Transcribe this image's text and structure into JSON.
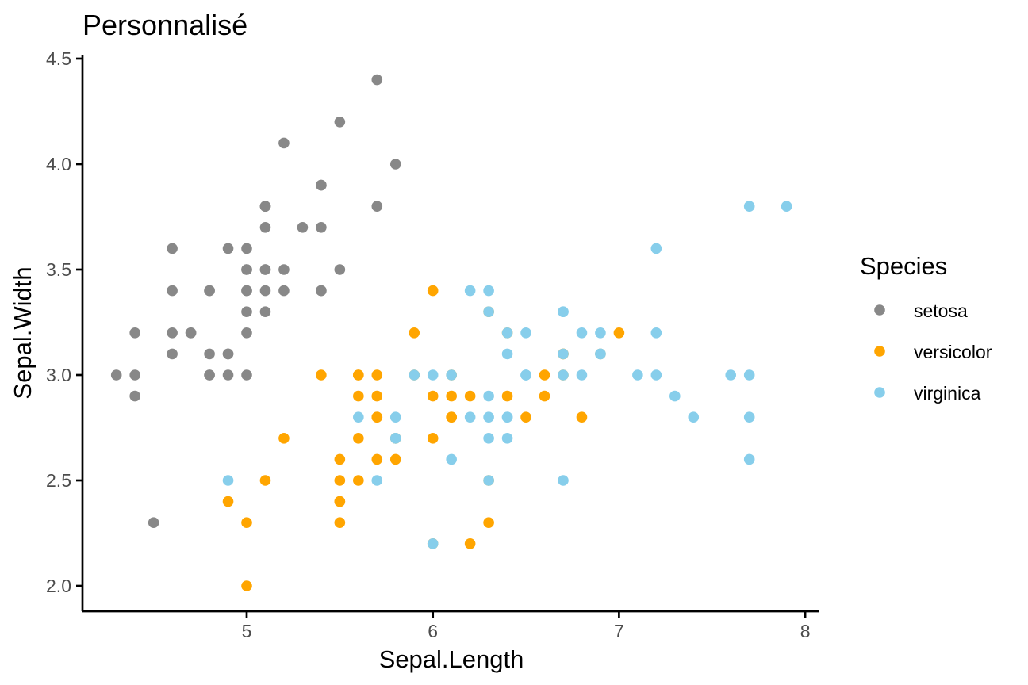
{
  "chart_data": {
    "type": "scatter",
    "title": "Personnalisé",
    "xlabel": "Sepal.Length",
    "ylabel": "Sepal.Width",
    "xlim": [
      4.3,
      8.0
    ],
    "ylim": [
      2.0,
      4.4
    ],
    "x_ticks": [
      5,
      6,
      7,
      8
    ],
    "x_tick_labels": [
      "5",
      "6",
      "7",
      "8"
    ],
    "y_ticks": [
      2.0,
      2.5,
      3.0,
      3.5,
      4.0,
      4.5
    ],
    "y_tick_labels": [
      "2.0",
      "2.5",
      "3.0",
      "3.5",
      "4.0",
      "4.5"
    ],
    "grid": false,
    "legend": {
      "title": "Species",
      "placement": "right"
    },
    "series": [
      {
        "name": "setosa",
        "color": "#888888",
        "points": [
          [
            5.1,
            3.5
          ],
          [
            4.9,
            3.0
          ],
          [
            4.7,
            3.2
          ],
          [
            4.6,
            3.1
          ],
          [
            5.0,
            3.6
          ],
          [
            5.4,
            3.9
          ],
          [
            4.6,
            3.4
          ],
          [
            5.0,
            3.4
          ],
          [
            4.4,
            2.9
          ],
          [
            4.9,
            3.1
          ],
          [
            5.4,
            3.7
          ],
          [
            4.8,
            3.4
          ],
          [
            4.8,
            3.0
          ],
          [
            4.3,
            3.0
          ],
          [
            5.8,
            4.0
          ],
          [
            5.7,
            4.4
          ],
          [
            5.4,
            3.9
          ],
          [
            5.1,
            3.5
          ],
          [
            5.7,
            3.8
          ],
          [
            5.1,
            3.8
          ],
          [
            5.4,
            3.4
          ],
          [
            5.1,
            3.7
          ],
          [
            4.6,
            3.6
          ],
          [
            5.1,
            3.3
          ],
          [
            4.8,
            3.4
          ],
          [
            5.0,
            3.0
          ],
          [
            5.0,
            3.4
          ],
          [
            5.2,
            3.5
          ],
          [
            5.2,
            3.4
          ],
          [
            4.7,
            3.2
          ],
          [
            4.8,
            3.1
          ],
          [
            5.4,
            3.4
          ],
          [
            5.2,
            4.1
          ],
          [
            5.5,
            4.2
          ],
          [
            4.9,
            3.1
          ],
          [
            5.0,
            3.2
          ],
          [
            5.5,
            3.5
          ],
          [
            4.9,
            3.6
          ],
          [
            4.4,
            3.0
          ],
          [
            5.1,
            3.4
          ],
          [
            5.0,
            3.5
          ],
          [
            4.5,
            2.3
          ],
          [
            4.4,
            3.2
          ],
          [
            5.0,
            3.5
          ],
          [
            5.1,
            3.8
          ],
          [
            4.8,
            3.0
          ],
          [
            5.1,
            3.8
          ],
          [
            4.6,
            3.2
          ],
          [
            5.3,
            3.7
          ],
          [
            5.0,
            3.3
          ]
        ]
      },
      {
        "name": "versicolor",
        "color": "#FFA500",
        "points": [
          [
            7.0,
            3.2
          ],
          [
            6.4,
            3.2
          ],
          [
            6.9,
            3.1
          ],
          [
            5.5,
            2.3
          ],
          [
            6.5,
            2.8
          ],
          [
            5.7,
            2.8
          ],
          [
            6.3,
            3.3
          ],
          [
            4.9,
            2.4
          ],
          [
            6.6,
            2.9
          ],
          [
            5.2,
            2.7
          ],
          [
            5.0,
            2.0
          ],
          [
            5.9,
            3.0
          ],
          [
            6.0,
            2.2
          ],
          [
            6.1,
            2.9
          ],
          [
            5.6,
            2.9
          ],
          [
            6.7,
            3.1
          ],
          [
            5.6,
            3.0
          ],
          [
            5.8,
            2.7
          ],
          [
            6.2,
            2.2
          ],
          [
            5.6,
            2.5
          ],
          [
            5.9,
            3.2
          ],
          [
            6.1,
            2.8
          ],
          [
            6.3,
            2.5
          ],
          [
            6.1,
            2.8
          ],
          [
            6.4,
            2.9
          ],
          [
            6.6,
            3.0
          ],
          [
            6.8,
            2.8
          ],
          [
            6.7,
            3.0
          ],
          [
            6.0,
            2.9
          ],
          [
            5.7,
            2.6
          ],
          [
            5.5,
            2.4
          ],
          [
            5.5,
            2.4
          ],
          [
            5.8,
            2.7
          ],
          [
            6.0,
            2.7
          ],
          [
            5.4,
            3.0
          ],
          [
            6.0,
            3.4
          ],
          [
            6.7,
            3.1
          ],
          [
            6.3,
            2.3
          ],
          [
            5.6,
            3.0
          ],
          [
            5.5,
            2.5
          ],
          [
            5.5,
            2.6
          ],
          [
            6.1,
            3.0
          ],
          [
            5.8,
            2.6
          ],
          [
            5.0,
            2.3
          ],
          [
            5.6,
            2.7
          ],
          [
            5.7,
            3.0
          ],
          [
            5.7,
            2.9
          ],
          [
            6.2,
            2.9
          ],
          [
            5.1,
            2.5
          ],
          [
            5.7,
            2.8
          ]
        ]
      },
      {
        "name": "virginica",
        "color": "#87CEEB",
        "points": [
          [
            6.3,
            3.3
          ],
          [
            5.8,
            2.7
          ],
          [
            7.1,
            3.0
          ],
          [
            6.3,
            2.9
          ],
          [
            6.5,
            3.0
          ],
          [
            7.6,
            3.0
          ],
          [
            4.9,
            2.5
          ],
          [
            7.3,
            2.9
          ],
          [
            6.7,
            2.5
          ],
          [
            7.2,
            3.6
          ],
          [
            6.5,
            3.2
          ],
          [
            6.4,
            2.7
          ],
          [
            6.8,
            3.0
          ],
          [
            5.7,
            2.5
          ],
          [
            5.8,
            2.8
          ],
          [
            6.4,
            3.2
          ],
          [
            6.5,
            3.0
          ],
          [
            7.7,
            3.8
          ],
          [
            7.7,
            2.6
          ],
          [
            6.0,
            2.2
          ],
          [
            6.9,
            3.2
          ],
          [
            5.6,
            2.8
          ],
          [
            7.7,
            2.8
          ],
          [
            6.3,
            2.7
          ],
          [
            6.7,
            3.3
          ],
          [
            7.2,
            3.2
          ],
          [
            6.2,
            2.8
          ],
          [
            6.1,
            3.0
          ],
          [
            6.4,
            2.8
          ],
          [
            7.2,
            3.0
          ],
          [
            7.4,
            2.8
          ],
          [
            7.9,
            3.8
          ],
          [
            6.4,
            2.8
          ],
          [
            6.3,
            2.8
          ],
          [
            6.1,
            2.6
          ],
          [
            7.7,
            3.0
          ],
          [
            6.3,
            3.4
          ],
          [
            6.4,
            3.1
          ],
          [
            6.0,
            3.0
          ],
          [
            6.9,
            3.1
          ],
          [
            6.7,
            3.1
          ],
          [
            6.9,
            3.1
          ],
          [
            5.8,
            2.7
          ],
          [
            6.8,
            3.2
          ],
          [
            6.7,
            3.3
          ],
          [
            6.7,
            3.0
          ],
          [
            6.3,
            2.5
          ],
          [
            6.5,
            3.0
          ],
          [
            6.2,
            3.4
          ],
          [
            5.9,
            3.0
          ]
        ]
      }
    ]
  }
}
